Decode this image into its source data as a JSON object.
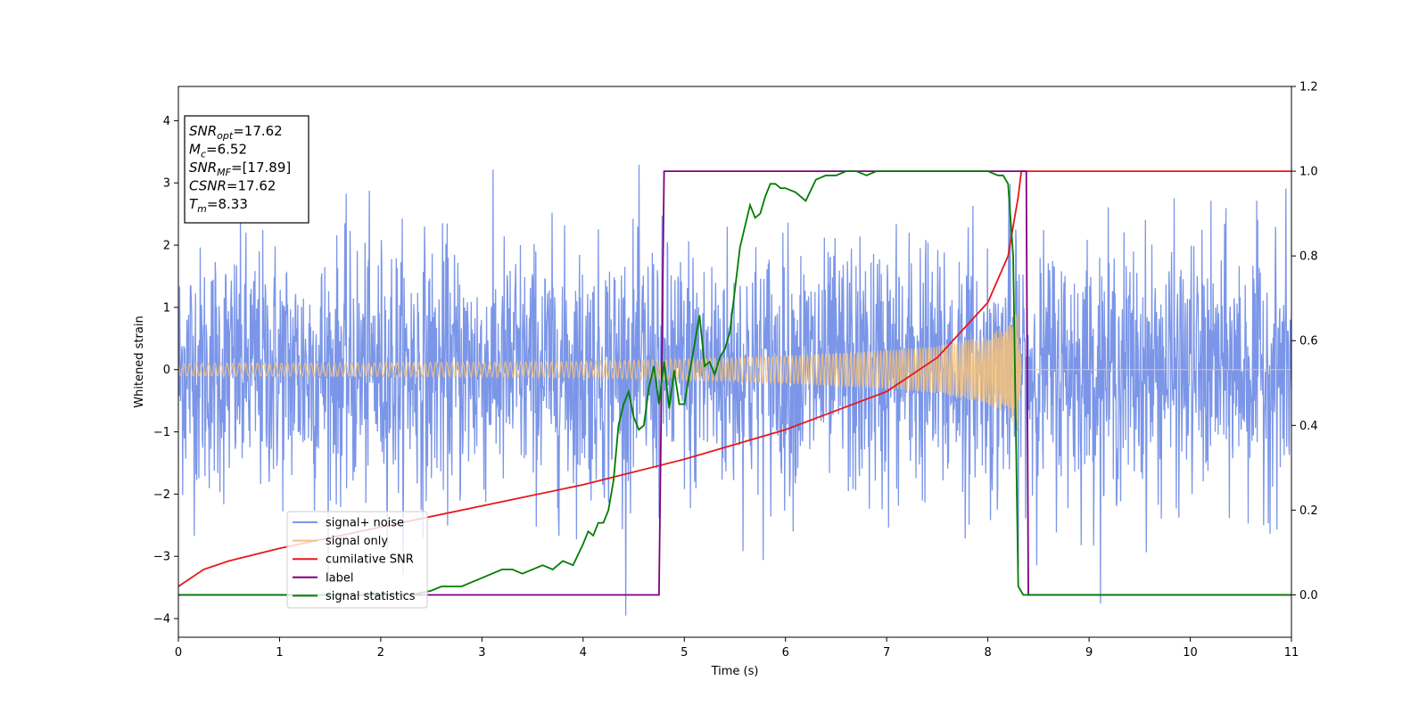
{
  "chart_data": {
    "type": "line",
    "xlabel": "Time (s)",
    "ylabel": "Whitened strain",
    "xlim": [
      0,
      11
    ],
    "ylim_left": [
      -4.3,
      4.55
    ],
    "ylim_right": [
      -0.1,
      1.2
    ],
    "x_ticks": [
      "0",
      "1",
      "2",
      "3",
      "4",
      "5",
      "6",
      "7",
      "8",
      "9",
      "10",
      "11"
    ],
    "y_left_ticks": [
      "−4",
      "−3",
      "−2",
      "−1",
      "0",
      "1",
      "2",
      "3",
      "4"
    ],
    "y_right_ticks": [
      "0.0",
      "0.2",
      "0.4",
      "0.6",
      "0.8",
      "1.0",
      "1.2"
    ],
    "info_box": [
      {
        "main": "SNR",
        "sub": "opt",
        "value": "=17.62"
      },
      {
        "main": "M",
        "sub": "c",
        "value": "=6.52"
      },
      {
        "main": "SNR",
        "sub": "MF",
        "value": "=[17.89]"
      },
      {
        "main": "CSNR",
        "sub": "",
        "value": "=17.62"
      },
      {
        "main": "T",
        "sub": "m",
        "value": "=8.33"
      }
    ],
    "legend_position": "lower-left",
    "series": [
      {
        "name": "signal+ noise",
        "color": "#7b96e8",
        "axis": "left",
        "description_values": {
          "noise_std": 1.0,
          "peak_max": 4.2,
          "peak_min": -3.9
        }
      },
      {
        "name": "signal only",
        "color": "#f5c27a",
        "axis": "left",
        "envelope_x": [
          0,
          2,
          4,
          5,
          6,
          7,
          7.5,
          8,
          8.2,
          8.3,
          8.33
        ],
        "envelope_y": [
          0.1,
          0.11,
          0.13,
          0.17,
          0.22,
          0.31,
          0.38,
          0.55,
          0.75,
          1.0,
          0
        ]
      },
      {
        "name": "cumilative SNR",
        "color": "#e8161b",
        "axis": "right",
        "x": [
          0,
          0.25,
          0.5,
          1,
          2,
          3,
          4,
          5,
          6,
          7,
          7.5,
          8,
          8.2,
          8.3,
          8.33,
          11
        ],
        "y": [
          0.02,
          0.06,
          0.08,
          0.11,
          0.16,
          0.21,
          0.26,
          0.32,
          0.39,
          0.48,
          0.56,
          0.69,
          0.8,
          0.94,
          1.0,
          1.0
        ]
      },
      {
        "name": "label",
        "color": "#800080",
        "axis": "right",
        "x": [
          0,
          4.75,
          4.8,
          8.38,
          8.4,
          11
        ],
        "y": [
          0,
          0,
          1,
          1,
          0,
          0
        ]
      },
      {
        "name": "signal statistics",
        "color": "#007d00",
        "axis": "right",
        "x": [
          0,
          0.5,
          1,
          2.3,
          2.5,
          2.6,
          2.7,
          2.8,
          2.9,
          3.0,
          3.1,
          3.2,
          3.3,
          3.4,
          3.5,
          3.6,
          3.7,
          3.8,
          3.9,
          4.0,
          4.05,
          4.1,
          4.15,
          4.2,
          4.25,
          4.3,
          4.35,
          4.4,
          4.45,
          4.5,
          4.55,
          4.6,
          4.65,
          4.7,
          4.75,
          4.8,
          4.85,
          4.9,
          4.95,
          5.0,
          5.05,
          5.1,
          5.15,
          5.2,
          5.25,
          5.3,
          5.35,
          5.4,
          5.45,
          5.5,
          5.55,
          5.6,
          5.65,
          5.7,
          5.75,
          5.8,
          5.85,
          5.9,
          5.95,
          6.0,
          6.1,
          6.2,
          6.3,
          6.4,
          6.5,
          6.6,
          6.7,
          6.8,
          6.9,
          7.0,
          7.2,
          7.5,
          7.8,
          8.0,
          8.1,
          8.15,
          8.2,
          8.25,
          8.3,
          8.35,
          8.4,
          11
        ],
        "y": [
          0,
          0,
          0,
          0,
          0.01,
          0.02,
          0.02,
          0.02,
          0.03,
          0.04,
          0.05,
          0.06,
          0.06,
          0.05,
          0.06,
          0.07,
          0.06,
          0.08,
          0.07,
          0.12,
          0.15,
          0.14,
          0.17,
          0.17,
          0.2,
          0.27,
          0.4,
          0.45,
          0.48,
          0.42,
          0.39,
          0.4,
          0.49,
          0.54,
          0.45,
          0.55,
          0.44,
          0.53,
          0.45,
          0.45,
          0.52,
          0.59,
          0.66,
          0.54,
          0.55,
          0.52,
          0.56,
          0.58,
          0.62,
          0.72,
          0.82,
          0.87,
          0.92,
          0.89,
          0.9,
          0.94,
          0.97,
          0.97,
          0.96,
          0.96,
          0.95,
          0.93,
          0.98,
          0.99,
          0.99,
          1.0,
          1.0,
          0.99,
          1.0,
          1.0,
          1.0,
          1.0,
          1.0,
          1.0,
          0.99,
          0.99,
          0.97,
          0.8,
          0.02,
          0.0,
          0.0,
          0.0
        ]
      }
    ]
  }
}
